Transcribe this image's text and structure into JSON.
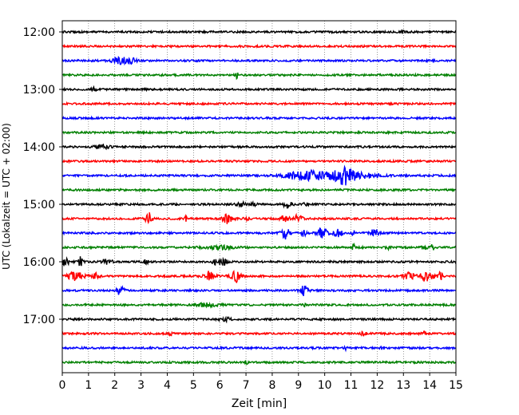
{
  "chart_data": {
    "type": "line",
    "title": "",
    "xlabel": "Zeit  [min]",
    "ylabel": "UTC (Lokalzeit = UTC + 02:00)",
    "xlim": [
      0,
      15
    ],
    "x_ticks": [
      "0",
      "1",
      "2",
      "3",
      "4",
      "5",
      "6",
      "7",
      "8",
      "9",
      "10",
      "11",
      "12",
      "13",
      "14",
      "15"
    ],
    "y_tick_labels": [
      "12:00",
      "13:00",
      "14:00",
      "15:00",
      "16:00",
      "17:00"
    ],
    "y_tick_rows": [
      0,
      4,
      8,
      12,
      16,
      20
    ],
    "grid": "vertical dotted",
    "colors_cycle": [
      "#000000",
      "#ff0000",
      "#0000ff",
      "#008000"
    ],
    "series": [
      {
        "row": 0,
        "events": [
          {
            "t": 13.0,
            "a": 3,
            "w": 0.1
          }
        ]
      },
      {
        "row": 1,
        "events": []
      },
      {
        "row": 2,
        "events": [
          {
            "t": 2.2,
            "a": 4,
            "w": 0.3
          },
          {
            "t": 2.6,
            "a": 3,
            "w": 0.2
          }
        ]
      },
      {
        "row": 3,
        "events": [
          {
            "t": 6.65,
            "a": 4,
            "w": 0.05
          }
        ]
      },
      {
        "row": 4,
        "events": [
          {
            "t": 1.2,
            "a": 2,
            "w": 0.1
          }
        ]
      },
      {
        "row": 5,
        "events": []
      },
      {
        "row": 6,
        "events": []
      },
      {
        "row": 7,
        "events": []
      },
      {
        "row": 8,
        "events": [
          {
            "t": 1.5,
            "a": 2,
            "w": 0.3
          }
        ]
      },
      {
        "row": 9,
        "events": []
      },
      {
        "row": 10,
        "events": [
          {
            "t": 8.8,
            "a": 3,
            "w": 0.5
          },
          {
            "t": 9.6,
            "a": 6,
            "w": 0.6
          },
          {
            "t": 10.7,
            "a": 11,
            "w": 0.4
          },
          {
            "t": 11.5,
            "a": 3,
            "w": 0.6
          }
        ]
      },
      {
        "row": 11,
        "events": []
      },
      {
        "row": 12,
        "events": [
          {
            "t": 6.8,
            "a": 3,
            "w": 0.15
          },
          {
            "t": 7.3,
            "a": 2,
            "w": 0.1
          },
          {
            "t": 8.6,
            "a": 5,
            "w": 0.15
          },
          {
            "t": 9.3,
            "a": 2,
            "w": 0.1
          }
        ]
      },
      {
        "row": 13,
        "events": [
          {
            "t": 3.3,
            "a": 8,
            "w": 0.12
          },
          {
            "t": 4.7,
            "a": 3,
            "w": 0.06
          },
          {
            "t": 6.3,
            "a": 6,
            "w": 0.2
          },
          {
            "t": 7.0,
            "a": 4,
            "w": 0.12
          },
          {
            "t": 8.5,
            "a": 5,
            "w": 0.15
          },
          {
            "t": 9.0,
            "a": 6,
            "w": 0.15
          }
        ]
      },
      {
        "row": 14,
        "events": [
          {
            "t": 8.5,
            "a": 8,
            "w": 0.15
          },
          {
            "t": 9.2,
            "a": 4,
            "w": 0.1
          },
          {
            "t": 9.9,
            "a": 6,
            "w": 0.2
          },
          {
            "t": 10.5,
            "a": 5,
            "w": 0.15
          },
          {
            "t": 11.1,
            "a": 3,
            "w": 0.06
          },
          {
            "t": 11.9,
            "a": 6,
            "w": 0.15
          }
        ]
      },
      {
        "row": 15,
        "events": [
          {
            "t": 6.0,
            "a": 2,
            "w": 0.6
          },
          {
            "t": 11.1,
            "a": 4,
            "w": 0.05
          },
          {
            "t": 12.4,
            "a": 3,
            "w": 0.1
          },
          {
            "t": 13.8,
            "a": 3,
            "w": 0.1
          },
          {
            "t": 14.1,
            "a": 5,
            "w": 0.05
          }
        ]
      },
      {
        "row": 16,
        "events": [
          {
            "t": 0.1,
            "a": 5,
            "w": 0.15
          },
          {
            "t": 0.7,
            "a": 6,
            "w": 0.08
          },
          {
            "t": 1.7,
            "a": 3,
            "w": 0.2
          },
          {
            "t": 3.2,
            "a": 3,
            "w": 0.08
          },
          {
            "t": 5.8,
            "a": 3,
            "w": 0.08
          },
          {
            "t": 6.1,
            "a": 5,
            "w": 0.15
          }
        ]
      },
      {
        "row": 17,
        "events": [
          {
            "t": 0.5,
            "a": 5,
            "w": 0.3
          },
          {
            "t": 1.3,
            "a": 4,
            "w": 0.15
          },
          {
            "t": 5.6,
            "a": 6,
            "w": 0.2
          },
          {
            "t": 6.6,
            "a": 7,
            "w": 0.2
          },
          {
            "t": 13.2,
            "a": 5,
            "w": 0.2
          },
          {
            "t": 13.9,
            "a": 6,
            "w": 0.25
          },
          {
            "t": 14.4,
            "a": 5,
            "w": 0.1
          }
        ]
      },
      {
        "row": 18,
        "events": [
          {
            "t": 2.2,
            "a": 5,
            "w": 0.15
          },
          {
            "t": 9.2,
            "a": 6,
            "w": 0.15
          }
        ]
      },
      {
        "row": 19,
        "events": [
          {
            "t": 5.5,
            "a": 2,
            "w": 0.4
          },
          {
            "t": 9.2,
            "a": 4,
            "w": 0.05
          }
        ]
      },
      {
        "row": 20,
        "events": [
          {
            "t": 6.2,
            "a": 2,
            "w": 0.2
          }
        ]
      },
      {
        "row": 21,
        "events": [
          {
            "t": 4.1,
            "a": 2,
            "w": 0.1
          },
          {
            "t": 11.5,
            "a": 3,
            "w": 0.1
          },
          {
            "t": 13.8,
            "a": 2,
            "w": 0.1
          }
        ]
      },
      {
        "row": 22,
        "events": [
          {
            "t": 10.8,
            "a": 3,
            "w": 0.05
          },
          {
            "t": 12.2,
            "a": 2,
            "w": 0.1
          }
        ]
      },
      {
        "row": 23,
        "events": [
          {
            "t": 7.0,
            "a": 2,
            "w": 0.1
          }
        ]
      }
    ]
  }
}
